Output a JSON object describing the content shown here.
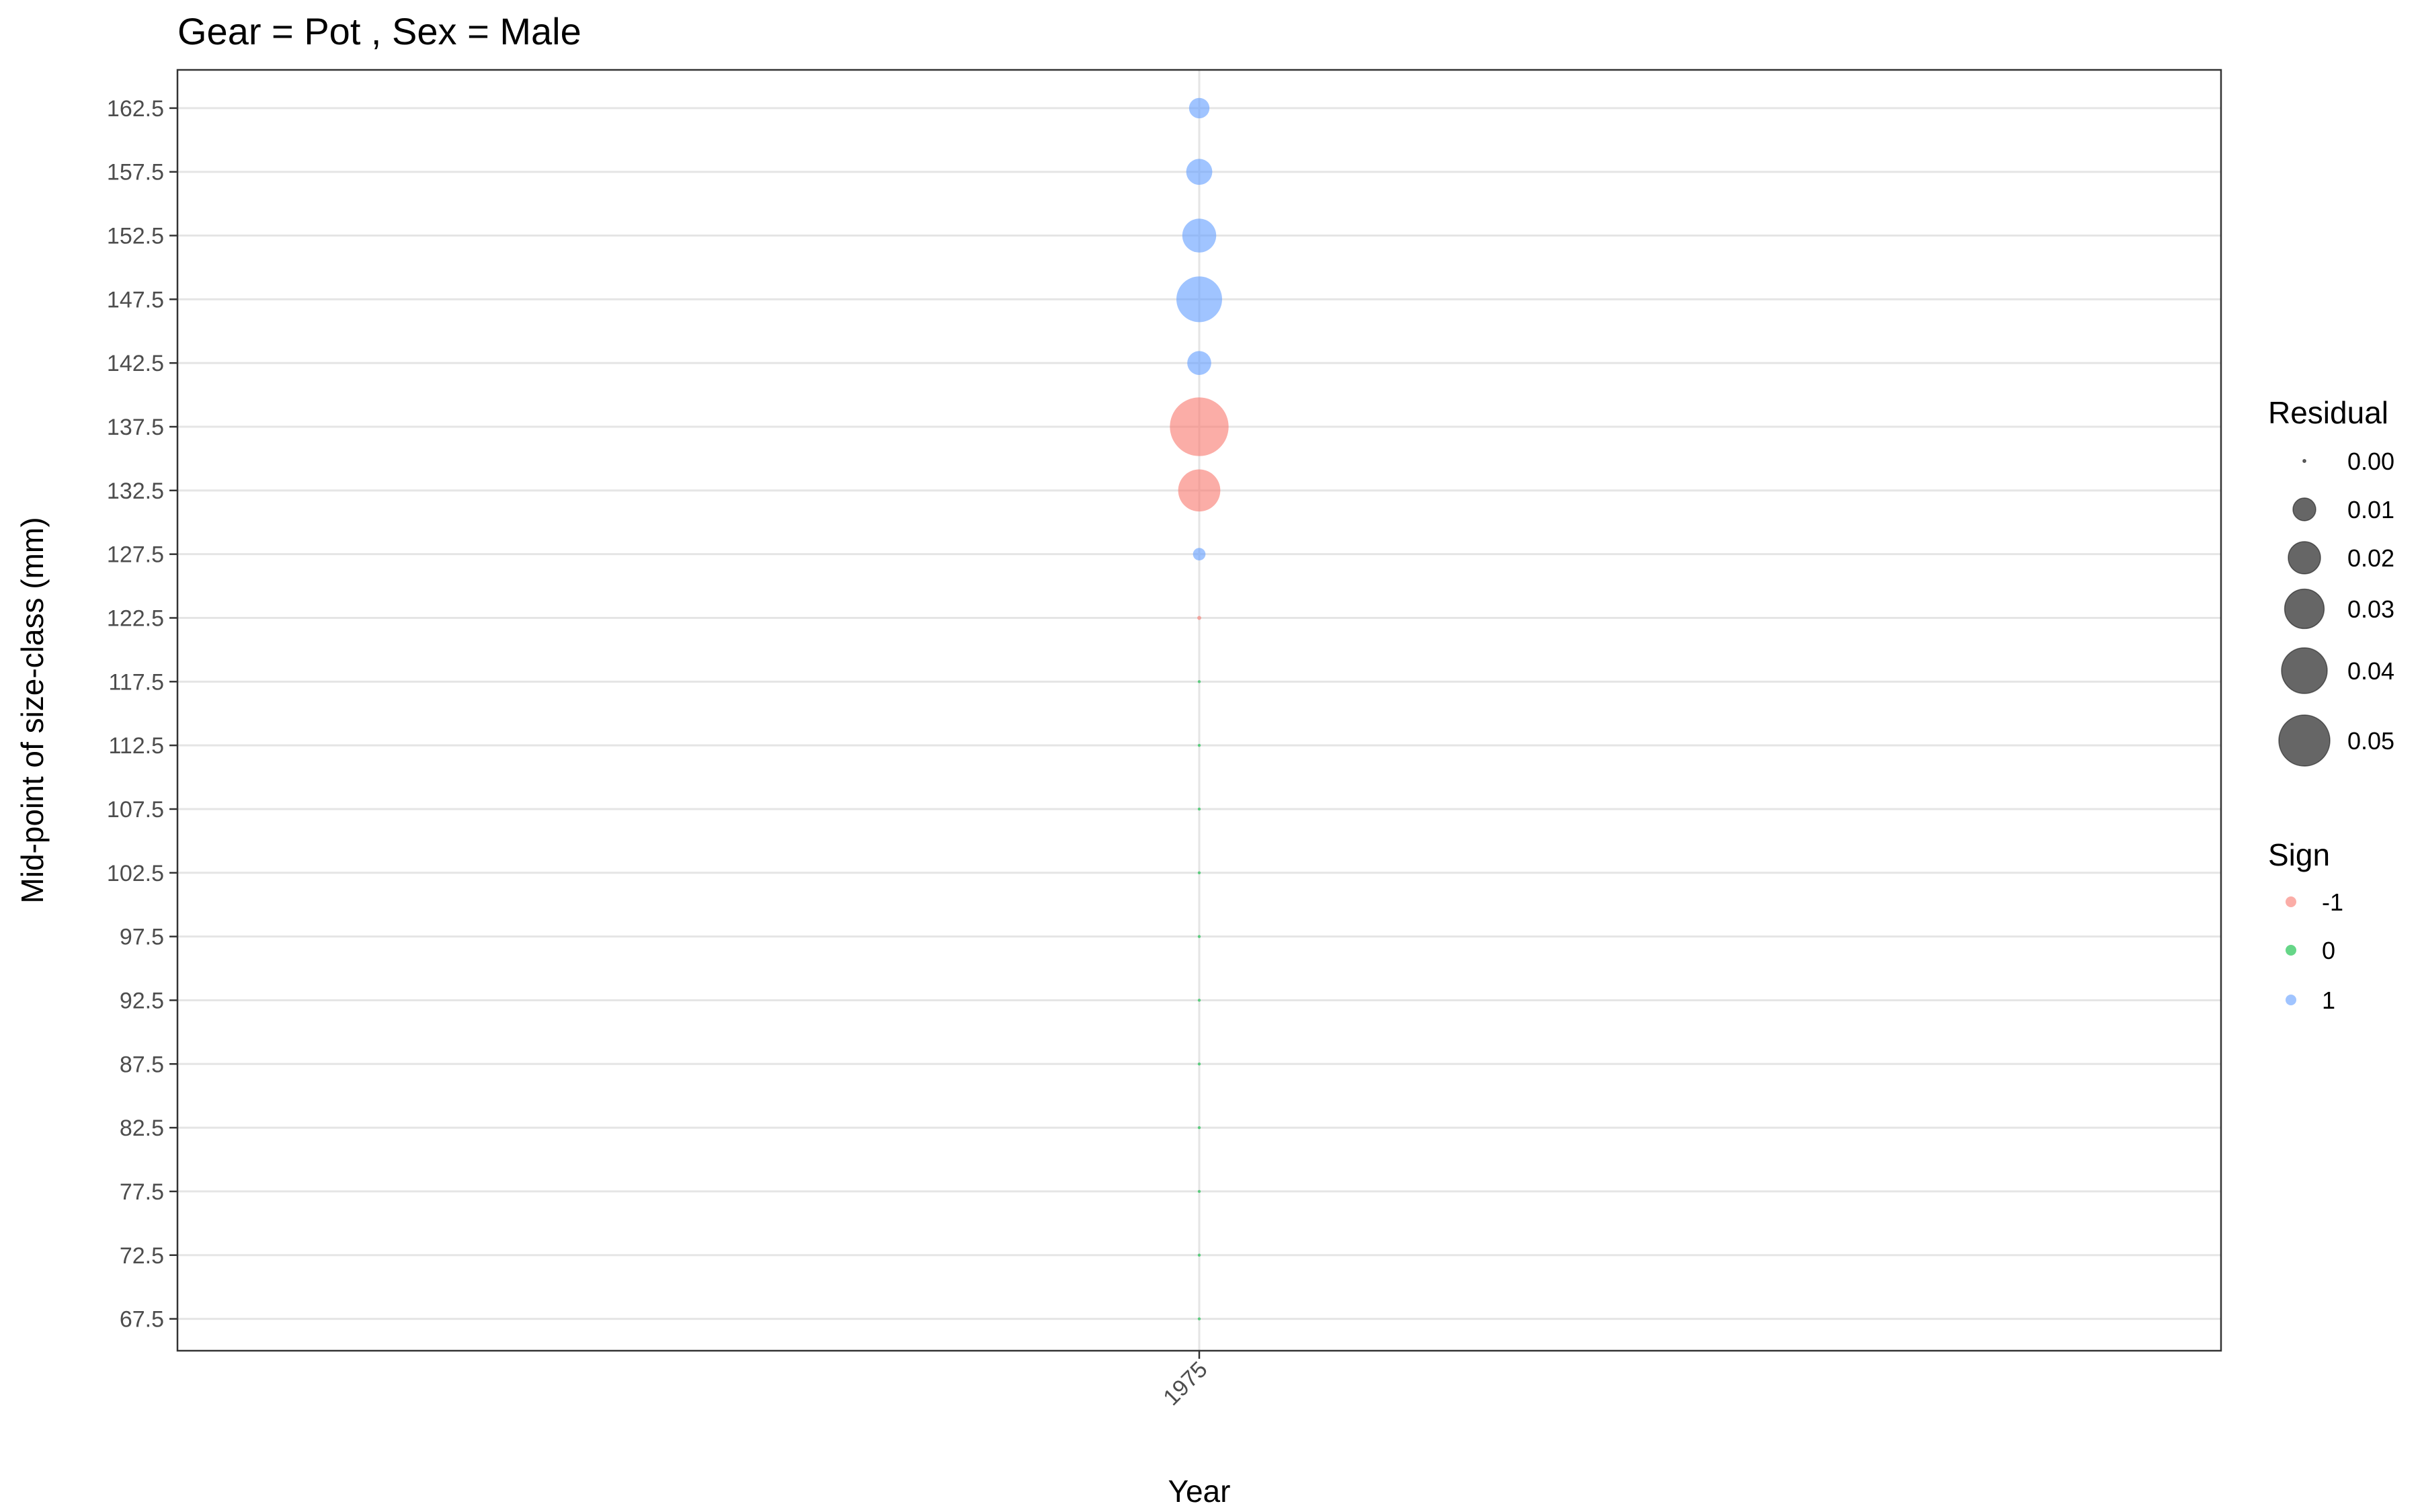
{
  "chart_data": {
    "type": "scatter",
    "title": "Gear = Pot , Sex = Male",
    "xlabel": "Year",
    "ylabel": "Mid-point of size-class (mm)",
    "x_categories": [
      "1975"
    ],
    "y_ticks": [
      67.5,
      72.5,
      77.5,
      82.5,
      87.5,
      92.5,
      97.5,
      102.5,
      107.5,
      112.5,
      117.5,
      122.5,
      127.5,
      132.5,
      137.5,
      142.5,
      147.5,
      152.5,
      157.5,
      162.5
    ],
    "y_tick_labels": [
      "67.5",
      "72.5",
      "77.5",
      "82.5",
      "87.5",
      "92.5",
      "97.5",
      "102.5",
      "107.5",
      "112.5",
      "117.5",
      "122.5",
      "127.5",
      "132.5",
      "137.5",
      "142.5",
      "147.5",
      "152.5",
      "157.5",
      "162.5"
    ],
    "ylim": [
      65,
      165.5
    ],
    "grid": true,
    "points": [
      {
        "x": "1975",
        "y": 162.5,
        "residual": 0.008,
        "sign": 1
      },
      {
        "x": "1975",
        "y": 157.5,
        "residual": 0.013,
        "sign": 1
      },
      {
        "x": "1975",
        "y": 152.5,
        "residual": 0.022,
        "sign": 1
      },
      {
        "x": "1975",
        "y": 147.5,
        "residual": 0.04,
        "sign": 1
      },
      {
        "x": "1975",
        "y": 142.5,
        "residual": 0.011,
        "sign": 1
      },
      {
        "x": "1975",
        "y": 137.5,
        "residual": 0.066,
        "sign": -1
      },
      {
        "x": "1975",
        "y": 132.5,
        "residual": 0.034,
        "sign": -1
      },
      {
        "x": "1975",
        "y": 127.5,
        "residual": 0.003,
        "sign": 1
      },
      {
        "x": "1975",
        "y": 122.5,
        "residual": 0.0003,
        "sign": -1
      },
      {
        "x": "1975",
        "y": 117.5,
        "residual": 0.0,
        "sign": 0
      },
      {
        "x": "1975",
        "y": 112.5,
        "residual": 0.0,
        "sign": 0
      },
      {
        "x": "1975",
        "y": 107.5,
        "residual": 0.0,
        "sign": 0
      },
      {
        "x": "1975",
        "y": 102.5,
        "residual": 0.0,
        "sign": 0
      },
      {
        "x": "1975",
        "y": 97.5,
        "residual": 0.0,
        "sign": 0
      },
      {
        "x": "1975",
        "y": 92.5,
        "residual": 0.0,
        "sign": 0
      },
      {
        "x": "1975",
        "y": 87.5,
        "residual": 0.0,
        "sign": 0
      },
      {
        "x": "1975",
        "y": 82.5,
        "residual": 0.0,
        "sign": 0
      },
      {
        "x": "1975",
        "y": 77.5,
        "residual": 0.0,
        "sign": 0
      },
      {
        "x": "1975",
        "y": 72.5,
        "residual": 0.0,
        "sign": 0
      },
      {
        "x": "1975",
        "y": 67.5,
        "residual": 0.0,
        "sign": 0
      }
    ],
    "legend_residual": {
      "title": "Residual",
      "entries": [
        {
          "label": "0.00",
          "value": 0.0
        },
        {
          "label": "0.01",
          "value": 0.01
        },
        {
          "label": "0.02",
          "value": 0.02
        },
        {
          "label": "0.03",
          "value": 0.03
        },
        {
          "label": "0.04",
          "value": 0.04
        },
        {
          "label": "0.05",
          "value": 0.05
        }
      ]
    },
    "legend_sign": {
      "title": "Sign",
      "entries": [
        {
          "label": "-1",
          "value": -1,
          "color": "#f8766d"
        },
        {
          "label": "0",
          "value": 0,
          "color": "#00ba38"
        },
        {
          "label": "1",
          "value": 1,
          "color": "#619cff"
        }
      ]
    },
    "legend_placement": "right"
  }
}
